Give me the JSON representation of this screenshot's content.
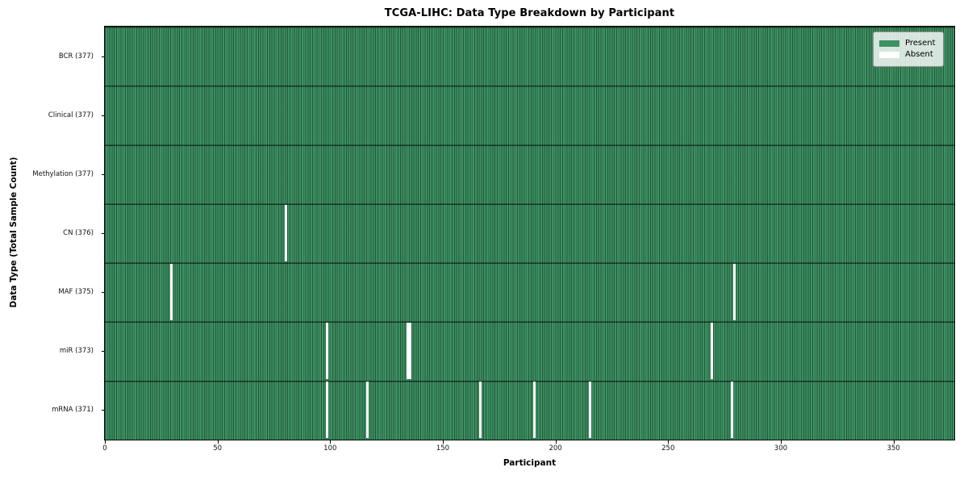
{
  "chart_data": {
    "type": "heatmap",
    "title": "TCGA-LIHC: Data Type Breakdown by Participant",
    "xlabel": "Participant",
    "ylabel": "Data Type (Total Sample Count)",
    "x_ticks": [
      0,
      50,
      100,
      150,
      200,
      250,
      300,
      350
    ],
    "x_range": [
      0,
      377
    ],
    "total_participants": 377,
    "grid": false,
    "legend_position": "upper right",
    "legend": [
      {
        "label": "Present",
        "color": "#3d9163"
      },
      {
        "label": "Absent",
        "color": "#ffffff"
      }
    ],
    "rows": [
      {
        "data_type": "BCR",
        "count": 377,
        "label": "BCR (377)",
        "absent_participants": []
      },
      {
        "data_type": "Clinical",
        "count": 377,
        "label": "Clinical (377)",
        "absent_participants": []
      },
      {
        "data_type": "Methylation",
        "count": 377,
        "label": "Methylation (377)",
        "absent_participants": []
      },
      {
        "data_type": "CN",
        "count": 376,
        "label": "CN (376)",
        "absent_participants": [
          80
        ]
      },
      {
        "data_type": "MAF",
        "count": 375,
        "label": "MAF (375)",
        "absent_participants": [
          29,
          279
        ]
      },
      {
        "data_type": "miR",
        "count": 373,
        "label": "miR (373)",
        "absent_participants": [
          98,
          134,
          135,
          269
        ]
      },
      {
        "data_type": "mRNA",
        "count": 371,
        "label": "mRNA (371)",
        "absent_participants": [
          98,
          116,
          166,
          190,
          215,
          278
        ]
      }
    ],
    "colors": {
      "present_fill": "#3d9163",
      "cell_edge": "#1f5033",
      "absent_fill": "#ffffff",
      "plot_border": "#0a0a0a",
      "legend_border": "#8f8f8f"
    }
  }
}
